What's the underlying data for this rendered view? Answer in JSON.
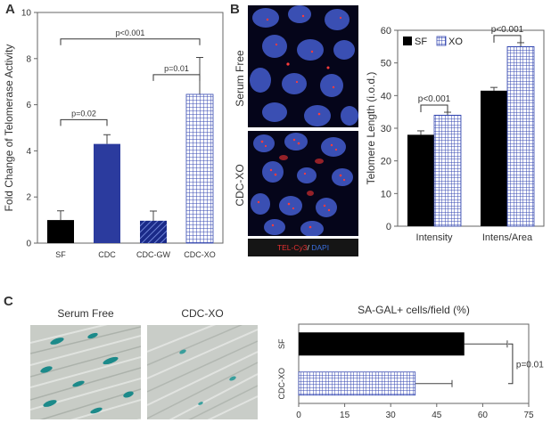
{
  "panels": {
    "A": {
      "letter": "A"
    },
    "B": {
      "letter": "B"
    },
    "C": {
      "letter": "C"
    }
  },
  "microscopy_B": {
    "top_label": "Serum Free",
    "bottom_label": "CDC-XO",
    "stain_red": "TEL-Cy3",
    "stain_sep": "/ ",
    "stain_blue": "DAPI",
    "colors": {
      "nuclei": "#3a4fb3",
      "background": "#05051a",
      "foci": "#ff3b3b",
      "stain_red": "#e53030",
      "stain_blue": "#3a6fe0"
    }
  },
  "microscopy_C": {
    "left_label": "Serum Free",
    "right_label": "CDC-XO",
    "colors": {
      "background": "#c8ccc6",
      "stain": "#1c8a8a"
    }
  },
  "chart_data": [
    {
      "panel": "A",
      "type": "bar",
      "ylabel": "Fold Change of Telomerase Activity",
      "categories": [
        "SF",
        "CDC",
        "CDC-GW",
        "CDC-XO"
      ],
      "values": [
        1.0,
        4.3,
        0.97,
        6.45
      ],
      "errors": [
        0.4,
        0.4,
        0.42,
        1.6
      ],
      "ylim": [
        0,
        10
      ],
      "yticks": [
        "0",
        "2",
        "4",
        "6",
        "8",
        "10"
      ],
      "fills": [
        "solid-black",
        "solid-blue",
        "hatched-blue",
        "grid-blue"
      ],
      "colors": {
        "black": "#000000",
        "blue": "#2b3b9e",
        "grid": "#3346b0"
      },
      "annotations": [
        {
          "text": "p=0.02",
          "from": "SF",
          "to": "CDC"
        },
        {
          "text": "p=0.01",
          "from": "CDC-GW",
          "to": "CDC-XO"
        },
        {
          "text": "p<0.001",
          "from": "SF",
          "to": "CDC-XO"
        }
      ]
    },
    {
      "panel": "B",
      "type": "bar",
      "ylabel": "Telomere Length (i.o.d.)",
      "categories": [
        "Intensity",
        "Intens/Area"
      ],
      "series": [
        {
          "name": "SF",
          "values": [
            28.0,
            41.5
          ],
          "errors": [
            1.2,
            1.0
          ]
        },
        {
          "name": "XO",
          "values": [
            34.0,
            55.0
          ],
          "errors": [
            0.9,
            1.2
          ]
        }
      ],
      "ylim": [
        0,
        60
      ],
      "yticks": [
        "0",
        "10",
        "20",
        "30",
        "40",
        "50",
        "60"
      ],
      "legend_placement": "top-left",
      "annotations": [
        {
          "text": "p<0.001",
          "category": "Intensity"
        },
        {
          "text": "p<0.001",
          "category": "Intens/Area"
        }
      ]
    },
    {
      "panel": "C",
      "type": "bar",
      "orientation": "horizontal",
      "title": "SA-GAL+ cells/field (%)",
      "categories": [
        "SF",
        "CDC-XO"
      ],
      "values": [
        54,
        38
      ],
      "errors": [
        14,
        12
      ],
      "xlim": [
        0,
        75
      ],
      "xticks": [
        "0",
        "15",
        "30",
        "45",
        "60",
        "75"
      ],
      "annotations": [
        {
          "text": "p=0.01"
        }
      ]
    }
  ]
}
